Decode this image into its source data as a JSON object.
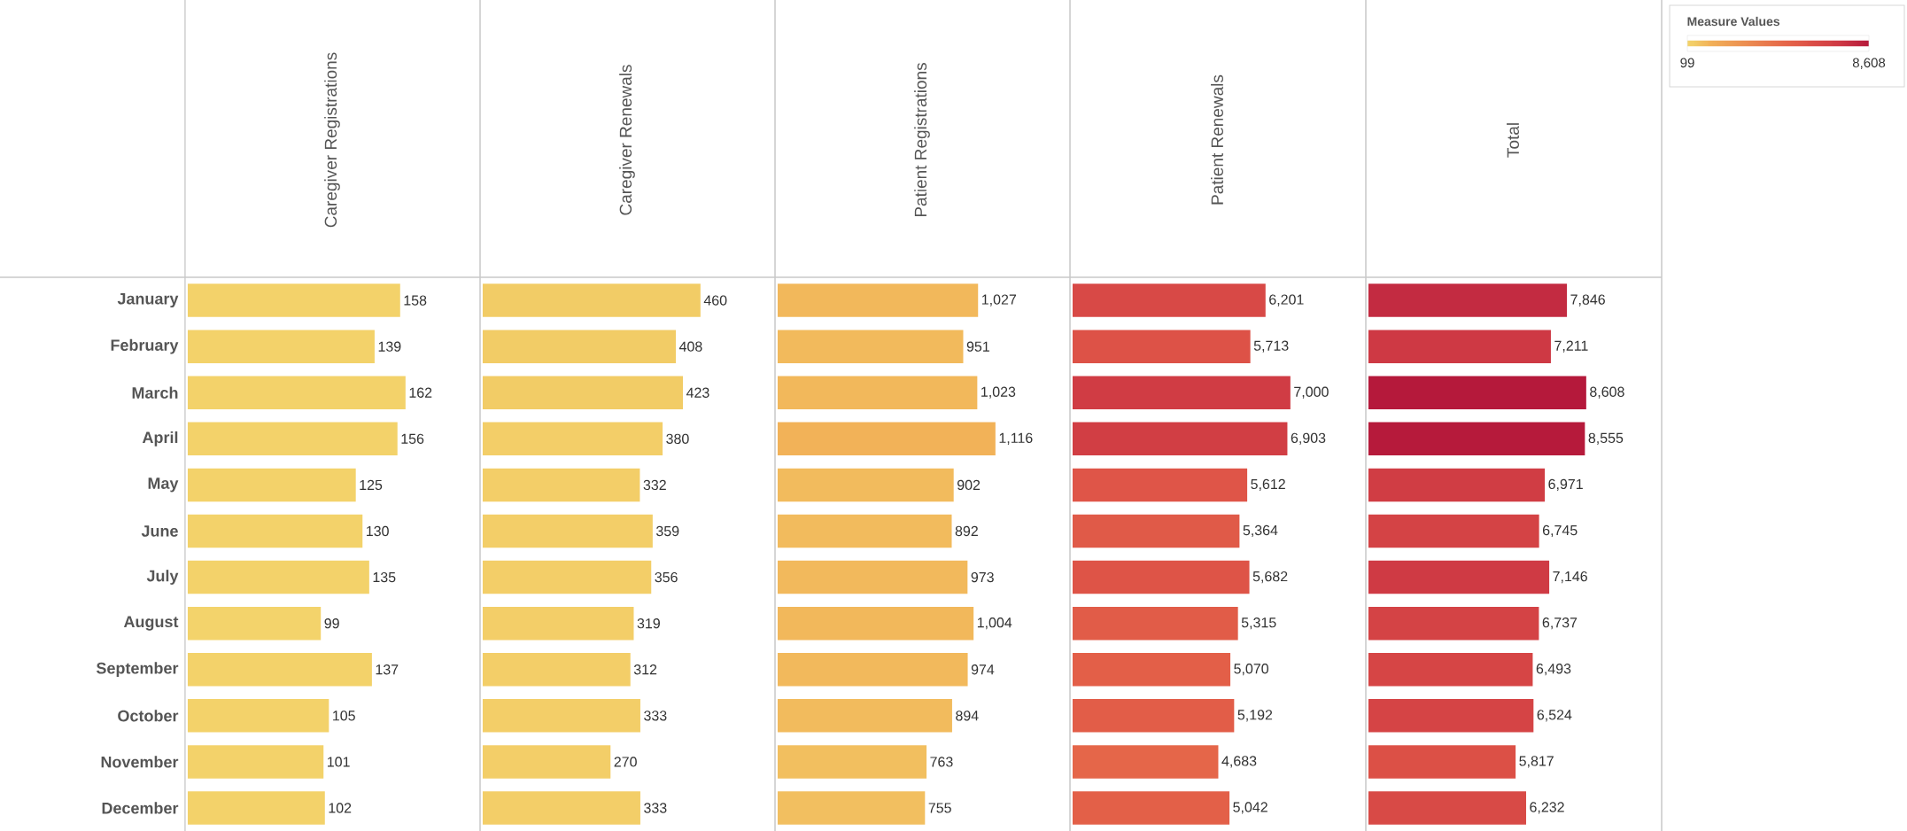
{
  "chart_data": [
    {
      "type": "bar",
      "orientation": "horizontal",
      "title": "Caregiver Registrations",
      "tick_labels": "y",
      "data_labels": true,
      "categories": [
        "January",
        "February",
        "March",
        "April",
        "May",
        "June",
        "July",
        "August",
        "September",
        "October",
        "November",
        "December"
      ],
      "values": [
        158,
        139,
        162,
        156,
        125,
        130,
        135,
        99,
        137,
        105,
        101,
        102
      ],
      "colors": [
        "#f3d26a",
        "#f3d26a",
        "#f3d26a",
        "#f3d26a",
        "#f3d26a",
        "#f3d26a",
        "#f3d26a",
        "#f3d36b",
        "#f3d26a",
        "#f3d26a",
        "#f3d26a",
        "#f3d26a"
      ]
    },
    {
      "type": "bar",
      "orientation": "horizontal",
      "title": "Caregiver Renewals",
      "data_labels": true,
      "categories": [
        null,
        null,
        null,
        null,
        null,
        null,
        null,
        null,
        null,
        null,
        null,
        null
      ],
      "values": [
        460,
        408,
        423,
        380,
        332,
        359,
        356,
        319,
        312,
        333,
        270,
        333
      ],
      "colors": [
        "#f2cc66",
        "#f2cc66",
        "#f2cc66",
        "#f3ce68",
        "#f3ce68",
        "#f3ce68",
        "#f3ce68",
        "#f3ce68",
        "#f3ce68",
        "#f3ce68",
        "#f3ce68",
        "#f3ce68"
      ]
    },
    {
      "type": "bar",
      "orientation": "horizontal",
      "title": "Patient Registrations",
      "categories": [
        null,
        null,
        null,
        null,
        null,
        null,
        null,
        null,
        null,
        null,
        null,
        null
      ],
      "values": [
        1027,
        951,
        1023,
        1116,
        902,
        892,
        973,
        1004,
        974,
        894,
        763,
        755
      ],
      "value_labels": [
        "1,027",
        "951",
        "1,023",
        "1,116",
        "902",
        "892",
        "973",
        "1,004",
        "974",
        "894",
        "763",
        "755"
      ],
      "colors": [
        "#f2b85b",
        "#f2ba5c",
        "#f2b85b",
        "#f2b258",
        "#f2bb5d",
        "#f2bb5d",
        "#f2b95c",
        "#f2b85b",
        "#f2b95c",
        "#f2bb5d",
        "#f2bf5f",
        "#f2bf60"
      ]
    },
    {
      "type": "bar",
      "orientation": "horizontal",
      "title": "Patient Renewals",
      "categories": [
        null,
        null,
        null,
        null,
        null,
        null,
        null,
        null,
        null,
        null,
        null,
        null
      ],
      "values": [
        6201,
        5713,
        7000,
        6903,
        5612,
        5364,
        5682,
        5315,
        5070,
        5192,
        4683,
        5042
      ],
      "value_labels": [
        "6,201",
        "5,713",
        "7,000",
        "6,903",
        "5,612",
        "5,364",
        "5,682",
        "5,315",
        "5,070",
        "5,192",
        "4,683",
        "5,042"
      ],
      "colors": [
        "#d84946",
        "#dd5247",
        "#d03c44",
        "#d13e44",
        "#df5548",
        "#e05a48",
        "#de5447",
        "#e15c48",
        "#e35f48",
        "#e25d48",
        "#e56649",
        "#e36048"
      ]
    },
    {
      "type": "bar",
      "orientation": "horizontal",
      "title": "Total",
      "categories": [
        null,
        null,
        null,
        null,
        null,
        null,
        null,
        null,
        null,
        null,
        null,
        null
      ],
      "values": [
        7846,
        7211,
        8608,
        8555,
        6971,
        6745,
        7146,
        6737,
        6493,
        6524,
        5817,
        6232
      ],
      "value_labels": [
        "7,846",
        "7,211",
        "8,608",
        "8,555",
        "6,971",
        "6,745",
        "7,146",
        "6,737",
        "6,493",
        "6,524",
        "5,817",
        "6,232"
      ],
      "colors": [
        "#c32b41",
        "#ce3944",
        "#b5193b",
        "#b61a3b",
        "#d03d44",
        "#d44345",
        "#cf3a44",
        "#d44345",
        "#d64545",
        "#d54445",
        "#dc5046",
        "#d84a46"
      ],
      "clabel": "Measure Values",
      "clim": [
        99,
        8608
      ],
      "cticks": [
        {
          "value": 99,
          "label": "99"
        },
        {
          "value": 8608,
          "label": "8,608"
        }
      ]
    }
  ]
}
